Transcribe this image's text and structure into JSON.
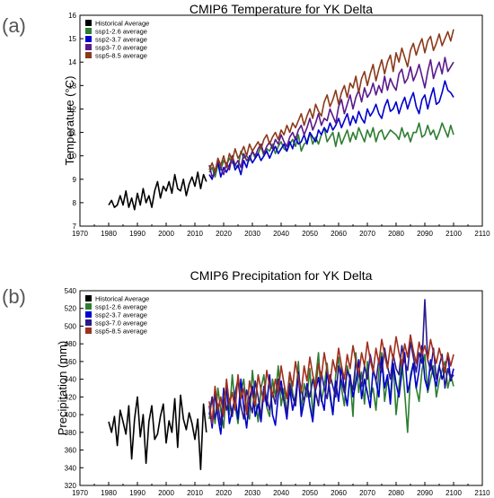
{
  "chart_data": [
    {
      "type": "line",
      "panel_label": "(a)",
      "title": "CMIP6 Temperature for YK Delta",
      "xlabel": "",
      "ylabel": "Temperature (°C)",
      "xlim": [
        1970,
        2110
      ],
      "ylim": [
        7,
        16
      ],
      "x_ticks": [
        1970,
        1980,
        1990,
        2000,
        2010,
        2020,
        2030,
        2040,
        2050,
        2060,
        2070,
        2080,
        2090,
        2100,
        2110
      ],
      "y_ticks": [
        7,
        8,
        9,
        10,
        11,
        12,
        13,
        14,
        15,
        16
      ],
      "legend_position": "top-left",
      "series": [
        {
          "name": "Historical Average",
          "color": "#000000",
          "x_start": 1980,
          "values": [
            7.9,
            8.1,
            7.8,
            7.9,
            8.3,
            7.9,
            8.5,
            7.8,
            8.2,
            7.7,
            8.4,
            7.9,
            8.6,
            8.0,
            8.3,
            7.8,
            8.5,
            8.9,
            8.2,
            8.7,
            8.5,
            8.9,
            8.4,
            9.2,
            8.6,
            8.5,
            9.0,
            8.3,
            8.8,
            9.1,
            8.7,
            9.3,
            8.6,
            9.2,
            8.9
          ]
        },
        {
          "name": "ssp1-2.6 average",
          "color": "#2e7d32",
          "x_start": 2015,
          "values": [
            9.3,
            9.5,
            9.1,
            9.6,
            9.4,
            9.8,
            9.6,
            9.9,
            9.7,
            9.6,
            9.5,
            10.2,
            9.9,
            10.0,
            9.8,
            10.2,
            9.9,
            10.1,
            10.4,
            10.0,
            10.3,
            10.2,
            10.5,
            10.1,
            10.4,
            10.6,
            10.3,
            10.2,
            10.5,
            10.7,
            10.4,
            10.9,
            10.2,
            10.5,
            10.6,
            11.0,
            10.5,
            10.8,
            10.5,
            10.9,
            11.2,
            10.6,
            10.8,
            11.0,
            10.4,
            11.0,
            10.5,
            10.8,
            11.1,
            10.6,
            11.0,
            10.7,
            11.2,
            10.9,
            10.6,
            11.1,
            10.8,
            11.2,
            10.6,
            11.0,
            11.1,
            10.7,
            10.9,
            11.1,
            11.0,
            10.9,
            10.7,
            11.2,
            10.8,
            11.0,
            10.6,
            11.0,
            11.0,
            11.4,
            10.8,
            10.9,
            11.3,
            10.9,
            11.1,
            10.7,
            11.0,
            11.4,
            11.1,
            10.8,
            11.3,
            10.9
          ]
        },
        {
          "name": "ssp2-3.7 average",
          "color": "#0000cc",
          "x_start": 2015,
          "values": [
            9.2,
            9.0,
            9.4,
            9.7,
            9.1,
            9.5,
            9.3,
            9.6,
            9.9,
            9.4,
            9.6,
            9.2,
            9.8,
            9.5,
            10.0,
            9.7,
            9.9,
            10.1,
            9.8,
            10.0,
            10.2,
            9.9,
            10.2,
            10.4,
            10.1,
            10.3,
            10.5,
            10.2,
            10.6,
            10.3,
            10.8,
            10.5,
            10.6,
            10.9,
            10.5,
            11.0,
            10.8,
            10.6,
            11.1,
            10.9,
            11.2,
            11.0,
            11.4,
            11.1,
            11.3,
            11.6,
            11.2,
            11.5,
            11.8,
            11.3,
            11.7,
            11.4,
            11.9,
            11.6,
            11.4,
            12.0,
            11.7,
            11.9,
            12.2,
            11.8,
            11.6,
            12.1,
            12.4,
            11.9,
            12.0,
            12.3,
            11.8,
            12.2,
            12.5,
            12.0,
            12.4,
            12.7,
            12.1,
            11.8,
            12.4,
            12.6,
            12.0,
            12.5,
            12.9,
            12.2,
            12.3,
            12.7,
            13.2,
            12.8,
            12.7,
            12.5
          ]
        },
        {
          "name": "ssp3-7.0 average",
          "color": "#5a1a8c",
          "x_start": 2015,
          "values": [
            9.6,
            9.1,
            9.3,
            9.8,
            9.5,
            9.2,
            9.7,
            9.4,
            10.0,
            9.6,
            9.8,
            9.5,
            10.1,
            9.8,
            9.9,
            10.2,
            10.0,
            10.3,
            10.5,
            10.1,
            10.4,
            10.6,
            10.3,
            10.7,
            10.5,
            10.9,
            10.6,
            10.4,
            10.8,
            11.0,
            10.7,
            11.1,
            11.3,
            10.9,
            11.2,
            11.6,
            11.1,
            11.4,
            11.8,
            11.3,
            11.6,
            11.5,
            12.0,
            11.7,
            11.4,
            12.1,
            12.4,
            11.8,
            12.2,
            12.6,
            12.0,
            12.5,
            12.8,
            12.3,
            12.9,
            12.5,
            12.7,
            13.1,
            12.6,
            13.0,
            12.7,
            13.4,
            12.8,
            13.3,
            13.0,
            12.8,
            13.5,
            13.7,
            13.1,
            13.3,
            13.8,
            13.2,
            13.5,
            13.9,
            13.4,
            12.9,
            13.6,
            14.1,
            13.3,
            13.7,
            14.0,
            13.5,
            14.2,
            13.6,
            13.8,
            14.0
          ]
        },
        {
          "name": "ssp5-8.5 average",
          "color": "#8b3a1a",
          "x_start": 2015,
          "values": [
            9.4,
            9.7,
            9.3,
            9.9,
            9.6,
            10.0,
            9.5,
            10.1,
            9.8,
            10.3,
            9.9,
            10.1,
            10.4,
            10.0,
            10.5,
            10.2,
            10.4,
            10.6,
            10.3,
            10.7,
            10.9,
            10.5,
            10.8,
            11.0,
            10.7,
            11.1,
            10.9,
            11.3,
            11.0,
            11.4,
            11.2,
            11.5,
            11.8,
            11.3,
            11.7,
            12.0,
            11.6,
            12.2,
            11.9,
            11.7,
            12.3,
            12.6,
            12.1,
            12.4,
            12.8,
            12.2,
            12.7,
            13.0,
            12.5,
            13.1,
            12.9,
            13.4,
            12.7,
            13.3,
            13.6,
            13.0,
            13.5,
            13.9,
            13.2,
            13.7,
            14.1,
            13.5,
            14.0,
            14.3,
            13.6,
            14.4,
            14.0,
            14.6,
            14.2,
            13.8,
            14.5,
            14.8,
            14.3,
            14.7,
            15.0,
            14.4,
            14.9,
            15.1,
            14.5,
            14.8,
            15.2,
            14.7,
            15.0,
            15.3,
            14.9,
            15.4
          ]
        }
      ]
    },
    {
      "type": "line",
      "panel_label": "(b)",
      "title": "CMIP6 Precipitation for YK Delta",
      "xlabel": "",
      "ylabel": "Precipitation (mm)",
      "xlim": [
        1970,
        2110
      ],
      "ylim": [
        320,
        540
      ],
      "x_ticks": [
        1970,
        1980,
        1990,
        2000,
        2010,
        2020,
        2030,
        2040,
        2050,
        2060,
        2070,
        2080,
        2090,
        2100,
        2110
      ],
      "y_ticks": [
        320,
        340,
        360,
        380,
        400,
        420,
        440,
        460,
        480,
        500,
        520,
        540
      ],
      "legend_position": "top-left",
      "series": [
        {
          "name": "Historical Average",
          "color": "#000000",
          "x_start": 1980,
          "values": [
            392,
            380,
            398,
            365,
            405,
            392,
            378,
            410,
            350,
            395,
            420,
            375,
            400,
            345,
            392,
            410,
            372,
            378,
            398,
            412,
            368,
            393,
            380,
            418,
            363,
            422,
            395,
            383,
            402,
            390,
            372,
            395,
            338,
            412,
            380
          ]
        },
        {
          "name": "ssp1-2.6 average",
          "color": "#2e7d32",
          "x_start": 2015,
          "values": [
            395,
            420,
            390,
            430,
            405,
            385,
            435,
            400,
            445,
            410,
            390,
            425,
            440,
            405,
            395,
            450,
            418,
            392,
            430,
            445,
            408,
            398,
            440,
            420,
            455,
            410,
            430,
            398,
            448,
            425,
            410,
            460,
            405,
            435,
            420,
            452,
            398,
            440,
            470,
            415,
            432,
            458,
            420,
            400,
            445,
            465,
            430,
            410,
            455,
            440,
            398,
            470,
            425,
            448,
            412,
            460,
            420,
            430,
            405,
            448,
            470,
            415,
            440,
            420,
            458,
            400,
            432,
            462,
            425,
            380,
            445,
            458,
            430,
            415,
            450,
            468,
            425,
            440,
            455,
            420,
            438,
            450,
            460,
            430,
            445,
            432
          ]
        },
        {
          "name": "ssp2-3.7 average",
          "color": "#0000cc",
          "x_start": 2015,
          "values": [
            410,
            385,
            425,
            398,
            378,
            415,
            430,
            390,
            405,
            420,
            395,
            440,
            408,
            385,
            418,
            432,
            398,
            412,
            392,
            428,
            410,
            445,
            400,
            388,
            422,
            438,
            415,
            395,
            430,
            405,
            420,
            448,
            398,
            415,
            435,
            410,
            392,
            428,
            442,
            418,
            405,
            450,
            425,
            400,
            438,
            415,
            455,
            428,
            410,
            445,
            420,
            435,
            462,
            418,
            440,
            425,
            408,
            452,
            438,
            420,
            465,
            430,
            445,
            412,
            458,
            435,
            420,
            448,
            470,
            425,
            440,
            458,
            430,
            450,
            478,
            440,
            428,
            462,
            445,
            432,
            455,
            440,
            450,
            468,
            438,
            452
          ]
        },
        {
          "name": "ssp3-7.0 average",
          "color": "#2a1a8c",
          "x_start": 2015,
          "values": [
            400,
            420,
            395,
            412,
            388,
            430,
            405,
            418,
            398,
            425,
            440,
            410,
            395,
            428,
            415,
            402,
            438,
            420,
            398,
            432,
            418,
            405,
            425,
            412,
            440,
            428,
            415,
            402,
            435,
            420,
            410,
            445,
            428,
            415,
            432,
            420,
            440,
            425,
            410,
            448,
            430,
            418,
            445,
            432,
            420,
            455,
            438,
            425,
            450,
            440,
            428,
            460,
            445,
            432,
            455,
            440,
            468,
            450,
            438,
            462,
            448,
            475,
            455,
            440,
            468,
            452,
            445,
            478,
            460,
            450,
            482,
            465,
            448,
            470,
            458,
            530,
            462,
            450,
            475,
            440,
            455,
            468,
            430,
            452,
            440,
            445
          ]
        },
        {
          "name": "ssp5-8.5 average",
          "color": "#a0301e",
          "x_start": 2015,
          "values": [
            415,
            390,
            432,
            405,
            420,
            398,
            440,
            412,
            425,
            405,
            445,
            418,
            430,
            400,
            438,
            422,
            410,
            445,
            428,
            415,
            450,
            432,
            420,
            440,
            425,
            455,
            435,
            418,
            448,
            432,
            460,
            440,
            425,
            455,
            438,
            465,
            445,
            430,
            458,
            442,
            470,
            450,
            435,
            462,
            448,
            475,
            455,
            440,
            468,
            452,
            478,
            460,
            445,
            470,
            455,
            482,
            462,
            448,
            475,
            458,
            485,
            468,
            452,
            478,
            462,
            488,
            470,
            455,
            480,
            465,
            490,
            472,
            458,
            482,
            468,
            478,
            462,
            485,
            470,
            458,
            475,
            462,
            448,
            470,
            455,
            468
          ]
        }
      ]
    }
  ]
}
